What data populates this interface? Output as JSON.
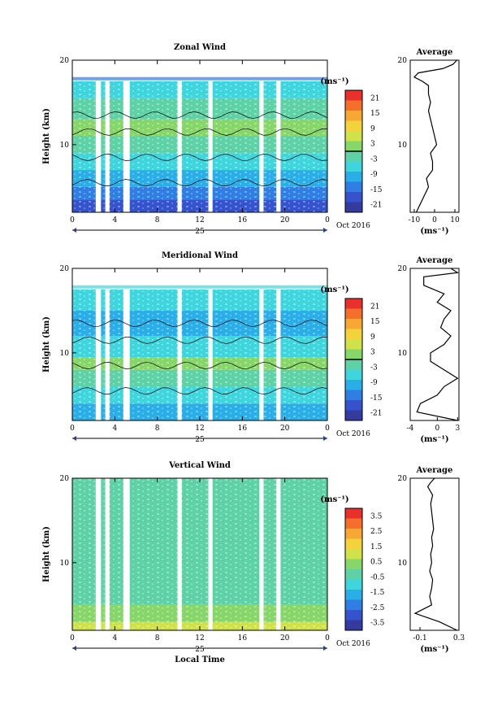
{
  "common": {
    "date_label": "Oct 2016",
    "day_label": "25",
    "xlabel": "Local Time",
    "ylabel": "Height (km)",
    "cbar_unit": "(ms⁻¹)",
    "avg_unit": "(ms⁻¹)",
    "avg_title": "Average",
    "x_ticks": [
      "0",
      "4",
      "8",
      "12",
      "16",
      "20",
      "0"
    ],
    "y_ticks": [
      "20",
      "10"
    ],
    "xlim": [
      0,
      24
    ],
    "ylim": [
      2,
      20
    ]
  },
  "chart_data": [
    {
      "type": "heatmap",
      "title": "Zonal Wind",
      "colorbar_ticks": [
        "21",
        "15",
        "9",
        "3",
        "-3",
        "-9",
        "-15",
        "-21"
      ],
      "colorbar_range": [
        -24,
        24
      ],
      "zero_line": 0,
      "average_profile": {
        "xticks": [
          "-10",
          "0",
          "10"
        ],
        "xlim": [
          -12,
          12
        ],
        "height": [
          2,
          3,
          4,
          5,
          6,
          7,
          8,
          9,
          10,
          11,
          12,
          13,
          14,
          15,
          16,
          17,
          17.5,
          18,
          18.5,
          19,
          19.5,
          20
        ],
        "value": [
          -9,
          -7,
          -5,
          -3,
          -4,
          -1,
          -1,
          -2,
          1,
          0,
          -1,
          -2,
          -3,
          -2,
          -3,
          -3,
          -6,
          -10,
          -8,
          4,
          9,
          11
        ]
      }
    },
    {
      "type": "heatmap",
      "title": "Meridional Wind",
      "colorbar_ticks": [
        "21",
        "15",
        "9",
        "3",
        "-3",
        "-9",
        "-15",
        "-21"
      ],
      "colorbar_range": [
        -24,
        24
      ],
      "zero_line": 0,
      "average_profile": {
        "xticks": [
          "-4",
          "0",
          "3"
        ],
        "xlim": [
          -4,
          3.2
        ],
        "height": [
          2,
          3,
          4,
          5,
          6,
          7,
          8,
          9,
          10,
          11,
          12,
          13,
          14,
          15,
          16,
          17,
          18,
          19,
          19.5,
          20
        ],
        "value": [
          3,
          -3,
          -2.5,
          0,
          1,
          3,
          1,
          -1,
          -1,
          1,
          2,
          0.5,
          1,
          2,
          0,
          1,
          -2,
          -2,
          3,
          2
        ]
      }
    },
    {
      "type": "heatmap",
      "title": "Vertical Wind",
      "colorbar_ticks": [
        "3.5",
        "2.5",
        "1.5",
        "0.5",
        "-0.5",
        "-1.5",
        "-2.5",
        "-3.5"
      ],
      "colorbar_range": [
        -4,
        4
      ],
      "zero_line": null,
      "average_profile": {
        "xticks": [
          "-0.1",
          "0.3"
        ],
        "xlim": [
          -0.2,
          0.3
        ],
        "height": [
          2,
          3,
          4,
          5,
          6,
          7,
          8,
          9,
          10,
          11,
          12,
          13,
          14,
          15,
          16,
          17,
          18,
          19,
          19.5,
          20
        ],
        "value": [
          0.28,
          0.1,
          -0.15,
          0.02,
          0.0,
          0.02,
          0.03,
          0.0,
          0.02,
          0.01,
          0.03,
          0.02,
          0.04,
          0.03,
          0.02,
          0.01,
          0.03,
          -0.02,
          0.01,
          0.05
        ]
      }
    }
  ]
}
